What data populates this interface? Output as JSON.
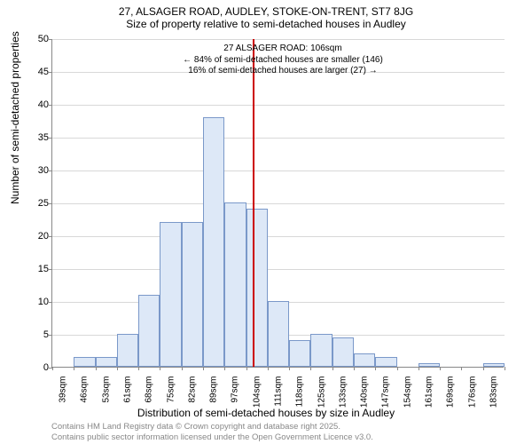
{
  "title": "27, ALSAGER ROAD, AUDLEY, STOKE-ON-TRENT, ST7 8JG",
  "subtitle": "Size of property relative to semi-detached houses in Audley",
  "ylabel": "Number of semi-detached properties",
  "xlabel": "Distribution of semi-detached houses by size in Audley",
  "footer_line1": "Contains HM Land Registry data © Crown copyright and database right 2025.",
  "footer_line2": "Contains public sector information licensed under the Open Government Licence v3.0.",
  "chart": {
    "type": "histogram",
    "background_color": "#ffffff",
    "grid_color": "#d8d8d8",
    "axis_color": "#888888",
    "bar_fill": "#dde8f7",
    "bar_border": "#7a98c9",
    "vline_color": "#cc0000",
    "ylim": [
      0,
      50
    ],
    "ytick_step": 5,
    "yticks": [
      0,
      5,
      10,
      15,
      20,
      25,
      30,
      35,
      40,
      45,
      50
    ],
    "x_categories": [
      "39sqm",
      "46sqm",
      "53sqm",
      "61sqm",
      "68sqm",
      "75sqm",
      "82sqm",
      "89sqm",
      "97sqm",
      "104sqm",
      "111sqm",
      "118sqm",
      "125sqm",
      "133sqm",
      "140sqm",
      "147sqm",
      "154sqm",
      "161sqm",
      "169sqm",
      "176sqm",
      "183sqm"
    ],
    "values": [
      0,
      1.5,
      1.5,
      5,
      11,
      22,
      22,
      38,
      25,
      24,
      10,
      4,
      5,
      4.5,
      2,
      1.5,
      0,
      0.5,
      0,
      0,
      0.5
    ],
    "vline_index": 9.3,
    "bar_width_ratio": 1.0,
    "tick_fontsize": 11,
    "label_fontsize": 12,
    "annot_fontsize": 10
  },
  "annotation": {
    "line1": "27 ALSAGER ROAD: 106sqm",
    "line2": "← 84% of semi-detached houses are smaller (146)",
    "line3": "16% of semi-detached houses are larger (27) →"
  }
}
